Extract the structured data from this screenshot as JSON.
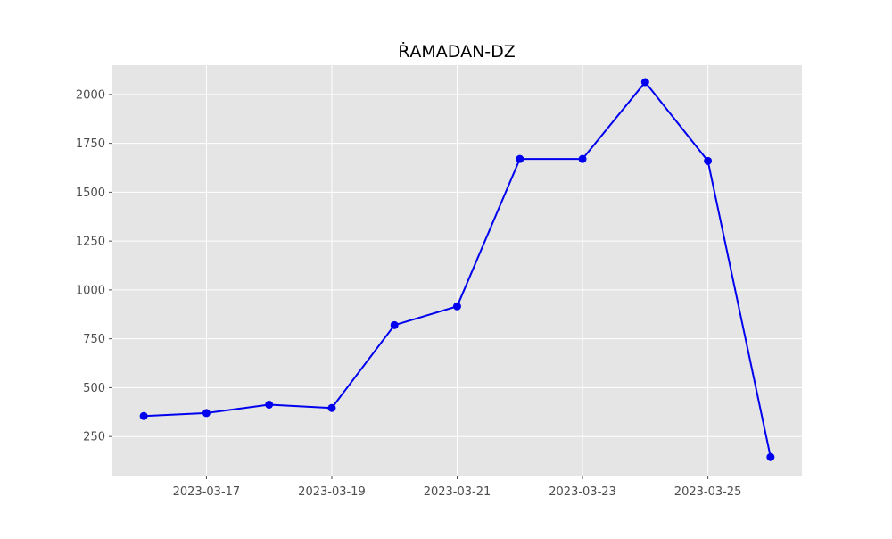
{
  "chart_data": {
    "type": "line",
    "title": "ṘAMADAN-DZ",
    "xlabel": "",
    "ylabel": "",
    "x": [
      "2023-03-16",
      "2023-03-17",
      "2023-03-18",
      "2023-03-19",
      "2023-03-20",
      "2023-03-21",
      "2023-03-22",
      "2023-03-23",
      "2023-03-24",
      "2023-03-25",
      "2023-03-26"
    ],
    "series": [
      {
        "values": [
          355,
          370,
          413,
          396,
          820,
          916,
          1670,
          1670,
          2063,
          1660,
          145
        ],
        "color": "#0000ee"
      }
    ],
    "xticks": [
      "2023-03-17",
      "2023-03-19",
      "2023-03-21",
      "2023-03-23",
      "2023-03-25"
    ],
    "yticks": [
      250,
      500,
      750,
      1000,
      1250,
      1500,
      1750,
      2000
    ],
    "xlim": [
      "2023-03-15T12:00",
      "2023-03-26T12:00"
    ],
    "ylim": [
      50,
      2150
    ],
    "grid": true,
    "marker": "circle",
    "colors": {
      "plot_background": "#e5e5e5",
      "grid": "#ffffff",
      "line": "#0000ee"
    }
  }
}
